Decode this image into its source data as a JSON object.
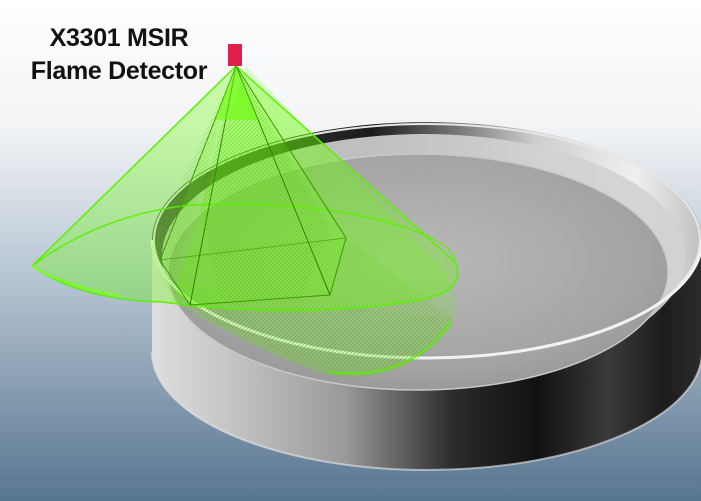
{
  "label": {
    "line1": "X3301 MSIR",
    "line2": "Flame Detector"
  },
  "colors": {
    "background_top": "#ffffff",
    "background_bottom": "#5a7892",
    "cone_green": "#66ff00",
    "detector_red": "#e0204a",
    "tank_wall_light": "#d8d8d8",
    "tank_wall_dark": "#141414",
    "tank_floor": "#a8a8a8"
  },
  "icons": {
    "detector": "detector-marker",
    "cone": "field-of-view-cone",
    "tank": "cylindrical-tank"
  }
}
